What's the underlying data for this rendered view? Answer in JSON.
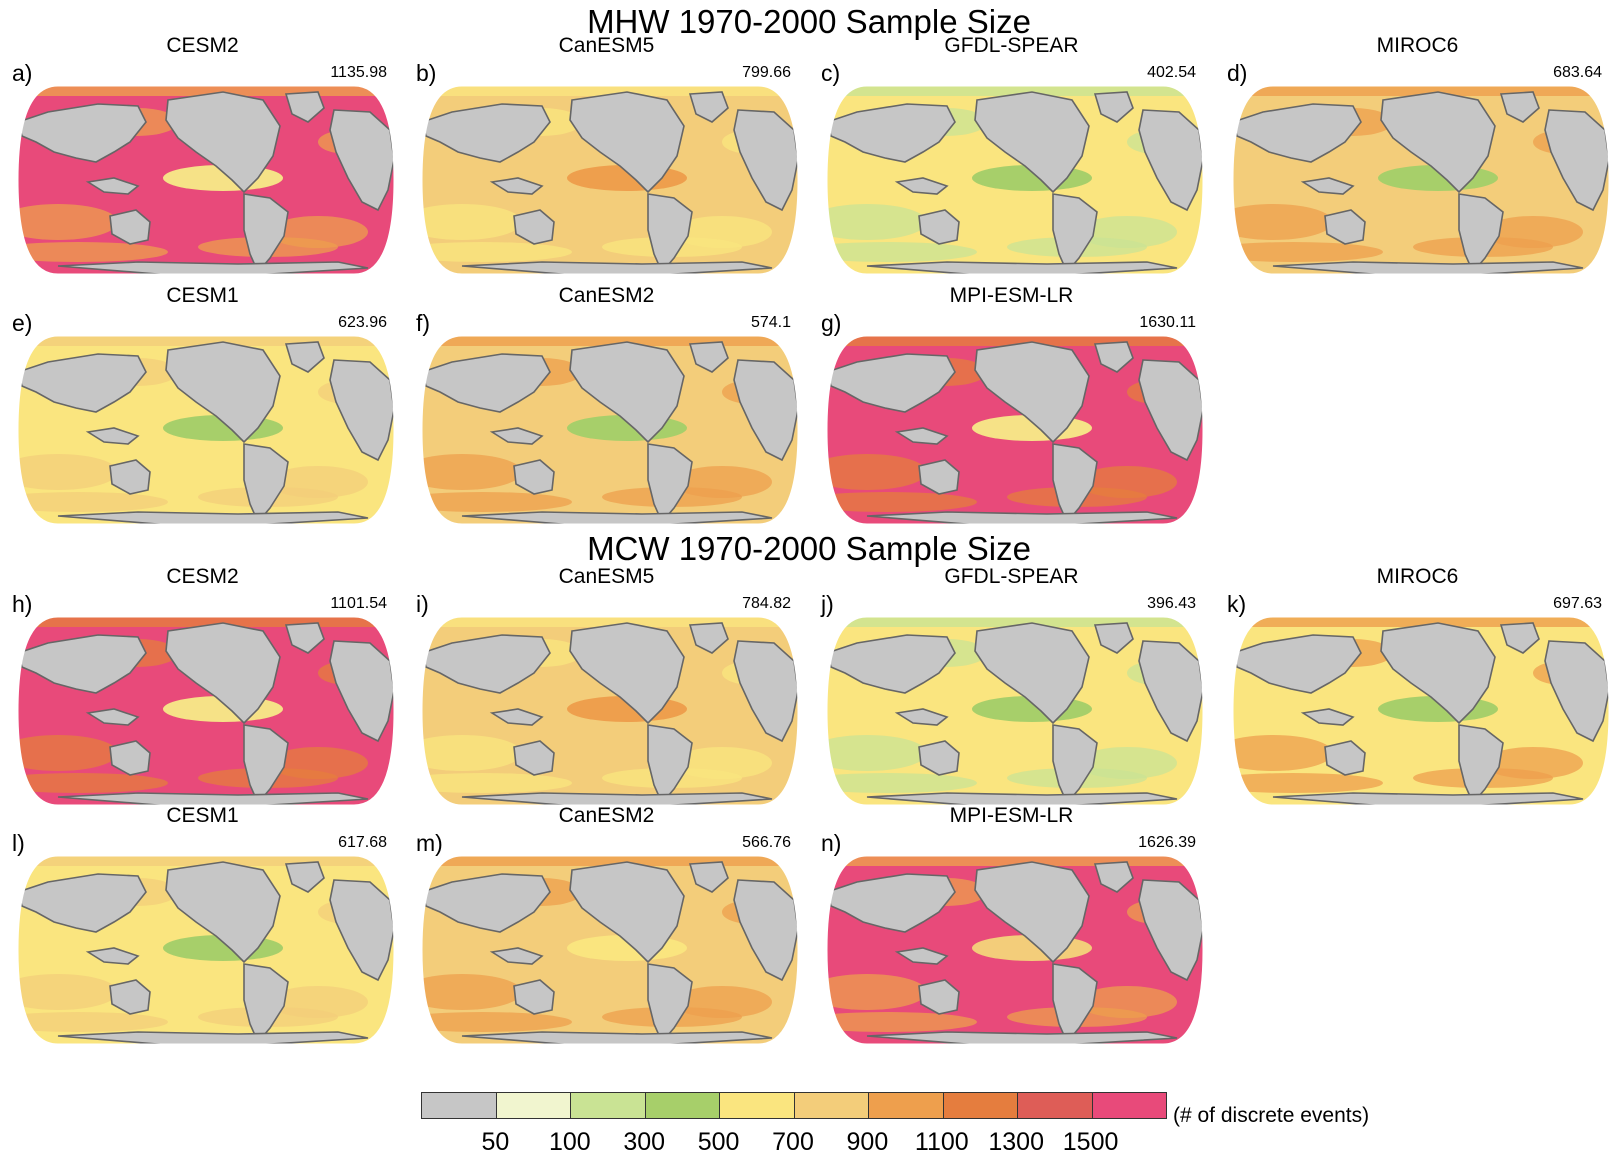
{
  "titles": {
    "mhw": "MHW 1970-2000 Sample Size",
    "mcw": "MCW 1970-2000 Sample Size"
  },
  "panels": [
    {
      "letter": "a)",
      "model": "CESM2",
      "value": "1135.98",
      "base": "#e84a7a",
      "band": "#f6e287",
      "spots": "#ee9f4d"
    },
    {
      "letter": "b)",
      "model": "CanESM5",
      "value": "799.66",
      "base": "#f3cd7a",
      "band": "#ee9f4d",
      "spots": "#fae57f"
    },
    {
      "letter": "c)",
      "model": "GFDL-SPEAR",
      "value": "402.54",
      "base": "#fae57f",
      "band": "#a7cf6a",
      "spots": "#c9e394"
    },
    {
      "letter": "d)",
      "model": "MIROC6",
      "value": "683.64",
      "base": "#f3cd7a",
      "band": "#a7cf6a",
      "spots": "#ee9f4d"
    },
    {
      "letter": "e)",
      "model": "CESM1",
      "value": "623.96",
      "base": "#fae57f",
      "band": "#a7cf6a",
      "spots": "#f3cd7a"
    },
    {
      "letter": "f)",
      "model": "CanESM2",
      "value": "574.1",
      "base": "#f3cd7a",
      "band": "#a7cf6a",
      "spots": "#ee9f4d"
    },
    {
      "letter": "g)",
      "model": "MPI-ESM-LR",
      "value": "1630.11",
      "base": "#e84a7a",
      "band": "#f6e287",
      "spots": "#e57d3e"
    },
    {
      "letter": "h)",
      "model": "CESM2",
      "value": "1101.54",
      "base": "#e84a7a",
      "band": "#f6e287",
      "spots": "#e57d3e"
    },
    {
      "letter": "i)",
      "model": "CanESM5",
      "value": "784.82",
      "base": "#f3cd7a",
      "band": "#ee9f4d",
      "spots": "#fae57f"
    },
    {
      "letter": "j)",
      "model": "GFDL-SPEAR",
      "value": "396.43",
      "base": "#fae57f",
      "band": "#a7cf6a",
      "spots": "#c9e394"
    },
    {
      "letter": "k)",
      "model": "MIROC6",
      "value": "697.63",
      "base": "#fae57f",
      "band": "#a7cf6a",
      "spots": "#ee9f4d"
    },
    {
      "letter": "l)",
      "model": "CESM1",
      "value": "617.68",
      "base": "#fae57f",
      "band": "#a7cf6a",
      "spots": "#f3cd7a"
    },
    {
      "letter": "m)",
      "model": "CanESM2",
      "value": "566.76",
      "base": "#f3cd7a",
      "band": "#fae57f",
      "spots": "#ee9f4d"
    },
    {
      "letter": "n)",
      "model": "MPI-ESM-LR",
      "value": "1626.39",
      "base": "#e84a7a",
      "band": "#f3cd7a",
      "spots": "#ee9f4d"
    }
  ],
  "legend": {
    "unit": "(# of discrete events)",
    "colors": [
      "#c6c6c6",
      "#f1f5cf",
      "#c9e394",
      "#a7cf6a",
      "#fae57f",
      "#f3cd7a",
      "#ee9f4d",
      "#e57d3e",
      "#de5d57",
      "#e84a7a"
    ],
    "ticks": [
      "50",
      "100",
      "300",
      "500",
      "700",
      "900",
      "1100",
      "1300",
      "1500"
    ]
  },
  "colors": {
    "land": "#c6c6c6",
    "coast": "#666666"
  }
}
